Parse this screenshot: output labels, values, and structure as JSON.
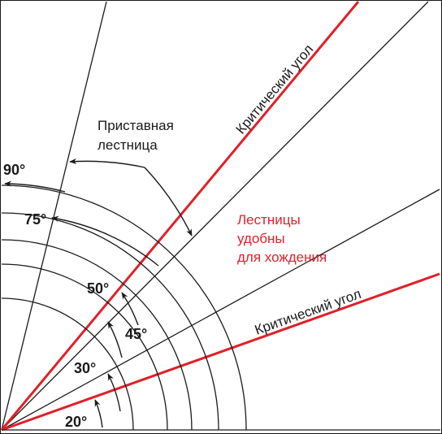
{
  "colors": {
    "line": "#1a1a1a",
    "critical": "#e0202a",
    "background": "#ffffff"
  },
  "labels": {
    "ladder_line1": "Приставная",
    "ladder_line2": "лестница",
    "comfortable_line1": "Лестницы",
    "comfortable_line2": "удобны",
    "comfortable_line3": "для хождения",
    "critical_upper": "Критический угол",
    "critical_lower": "Критический угол"
  },
  "angles": {
    "a90": "90°",
    "a75": "75°",
    "a50": "50°",
    "a45": "45°",
    "a30": "30°",
    "a20": "20°"
  }
}
